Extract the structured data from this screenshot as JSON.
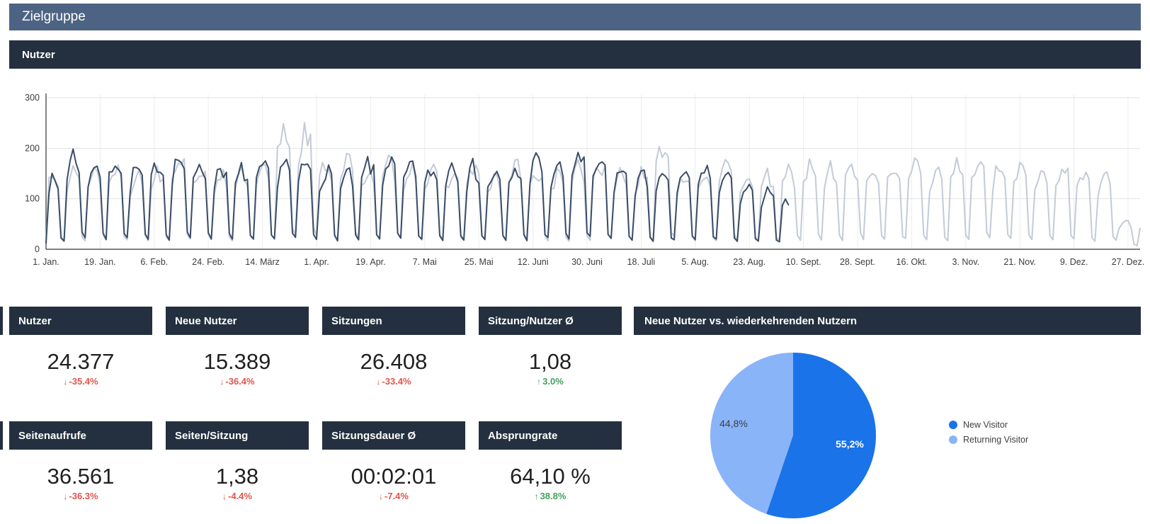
{
  "page": {
    "title": "Zielgruppe",
    "section_title": "Nutzer"
  },
  "colors": {
    "title_bar": "#4d6384",
    "section_bar": "#24303f",
    "positive": "#43a05f",
    "negative": "#e2544b",
    "series_current": "#3a4d68",
    "series_comparison": "#c3cad8",
    "pie_new_visitor": "#1a73e8",
    "pie_returning_visitor": "#8ab4f8"
  },
  "icons": {
    "arrow_up": "↑",
    "arrow_down": "↓"
  },
  "scorecards": [
    {
      "title": "Nutzer",
      "value": "24.377",
      "delta": "-35.4%",
      "direction": "down"
    },
    {
      "title": "Neue Nutzer",
      "value": "15.389",
      "delta": "-36.4%",
      "direction": "down"
    },
    {
      "title": "Sitzungen",
      "value": "26.408",
      "delta": "-33.4%",
      "direction": "down"
    },
    {
      "title": "Sitzung/Nutzer Ø",
      "value": "1,08",
      "delta": "3.0%",
      "direction": "up"
    },
    {
      "title": "Seitenaufrufe",
      "value": "36.561",
      "delta": "-36.3%",
      "direction": "down"
    },
    {
      "title": "Seiten/Sitzung",
      "value": "1,38",
      "delta": "-4.4%",
      "direction": "down"
    },
    {
      "title": "Sitzungsdauer Ø",
      "value": "00:02:01",
      "delta": "-7.4%",
      "direction": "down"
    },
    {
      "title": "Absprungrate",
      "value": "64,10 %",
      "delta": "38.8%",
      "direction": "up"
    }
  ],
  "pie_card": {
    "title": "Neue Nutzer vs. wiederkehrenden Nutzern",
    "slices": [
      {
        "label": "New Visitor",
        "value_pct": 55.2,
        "display": "55,2%",
        "color": "#1a73e8"
      },
      {
        "label": "Returning Visitor",
        "value_pct": 44.8,
        "display": "44,8%",
        "color": "#8ab4f8"
      }
    ]
  },
  "chart_data": [
    {
      "type": "line",
      "title": "Nutzer",
      "ylim": [
        0,
        300
      ],
      "y_ticks": [
        0,
        100,
        200,
        300
      ],
      "grid": true,
      "legend_position": "none",
      "x_ticks": [
        {
          "label": "1. Jan.",
          "day": 0
        },
        {
          "label": "19. Jan.",
          "day": 18
        },
        {
          "label": "6. Feb.",
          "day": 36
        },
        {
          "label": "24. Feb.",
          "day": 54
        },
        {
          "label": "14. März",
          "day": 72
        },
        {
          "label": "1. Apr.",
          "day": 90
        },
        {
          "label": "19. Apr.",
          "day": 108
        },
        {
          "label": "7. Mai",
          "day": 126
        },
        {
          "label": "25. Mai",
          "day": 144
        },
        {
          "label": "12. Juni",
          "day": 162
        },
        {
          "label": "30. Juni",
          "day": 180
        },
        {
          "label": "18. Juli",
          "day": 198
        },
        {
          "label": "5. Aug.",
          "day": 216
        },
        {
          "label": "23. Aug.",
          "day": 234
        },
        {
          "label": "10. Sept.",
          "day": 252
        },
        {
          "label": "28. Sept.",
          "day": 270
        },
        {
          "label": "16. Okt.",
          "day": 288
        },
        {
          "label": "3. Nov.",
          "day": 306
        },
        {
          "label": "21. Nov.",
          "day": 324
        },
        {
          "label": "9. Dez.",
          "day": 342
        },
        {
          "label": "27. Dez.",
          "day": 360
        }
      ],
      "weekday_shape": [
        0.78,
        0.92,
        1.0,
        0.96,
        0.88,
        0.17,
        0.12
      ],
      "series": [
        {
          "name": "current-period-dark",
          "color": "#3a4d68",
          "days": 248,
          "seed": 7,
          "weekly_peaks": [
            135,
            188,
            170,
            180,
            160,
            172,
            182,
            174,
            166,
            156,
            164,
            176,
            170,
            157,
            150,
            170,
            177,
            164,
            157,
            172,
            161,
            150,
            158,
            177,
            167,
            190,
            172,
            157,
            147,
            140,
            152,
            160,
            145,
            122,
            112,
            100
          ]
        },
        {
          "name": "comparison-period-light",
          "color": "#c3cad8",
          "days": 365,
          "seed": 13,
          "weekly_peaks": [
            160,
            152,
            158,
            164,
            150,
            157,
            185,
            160,
            154,
            147,
            158,
            240,
            235,
            170,
            184,
            160,
            171,
            167,
            157,
            150,
            161,
            144,
            167,
            154,
            147,
            160,
            170,
            154,
            147,
            205,
            150,
            150,
            160,
            150,
            144,
            155,
            164,
            160,
            170,
            157,
            164,
            171,
            160,
            167,
            174,
            161,
            170,
            157,
            164,
            150,
            147,
            55
          ]
        }
      ],
      "note": "Daily series estimated from pixels: weekday highs near weekly_peaks, weekend lows ~10-30; dark series ends early September, light series spans full year."
    },
    {
      "type": "pie",
      "title": "Neue Nutzer vs. wiederkehrenden Nutzern",
      "labels": [
        "New Visitor",
        "Returning Visitor"
      ],
      "values": [
        55.2,
        44.8
      ],
      "colors": [
        "#1a73e8",
        "#8ab4f8"
      ],
      "legend_position": "right"
    }
  ]
}
